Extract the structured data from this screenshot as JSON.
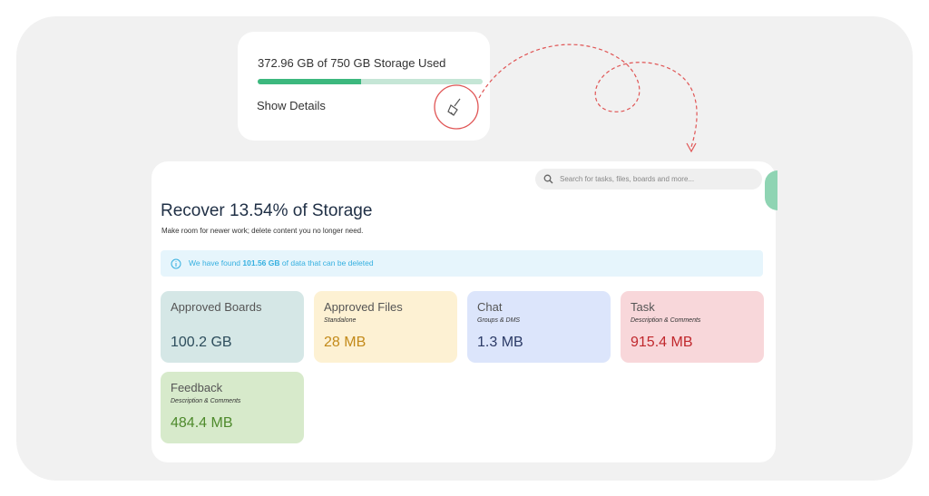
{
  "storage_card": {
    "usage": "372.96 GB of 750 GB Storage Used",
    "link": "Show Details"
  },
  "search": {
    "placeholder": "Search for tasks, files, boards and more..."
  },
  "header": {
    "title": "Recover 13.54% of Storage",
    "subtitle": "Make room for newer work; delete content you no longer need."
  },
  "banner": {
    "before": "We have found",
    "amount": "101.56 GB",
    "after": "of data that can be deleted"
  },
  "cards": [
    {
      "title": "Approved Boards",
      "value": "100.2 GB"
    },
    {
      "title": "Approved Files",
      "subtitle": "Standalone",
      "value": "28 MB"
    },
    {
      "title": "Chat",
      "subtitle": "Groups & DMS",
      "value": "1.3 MB"
    },
    {
      "title": "Task",
      "subtitle": "Description & Comments",
      "value": "915.4 MB"
    },
    {
      "title": "Feedback",
      "subtitle": "Description & Comments",
      "value": "484.4 MB"
    }
  ]
}
